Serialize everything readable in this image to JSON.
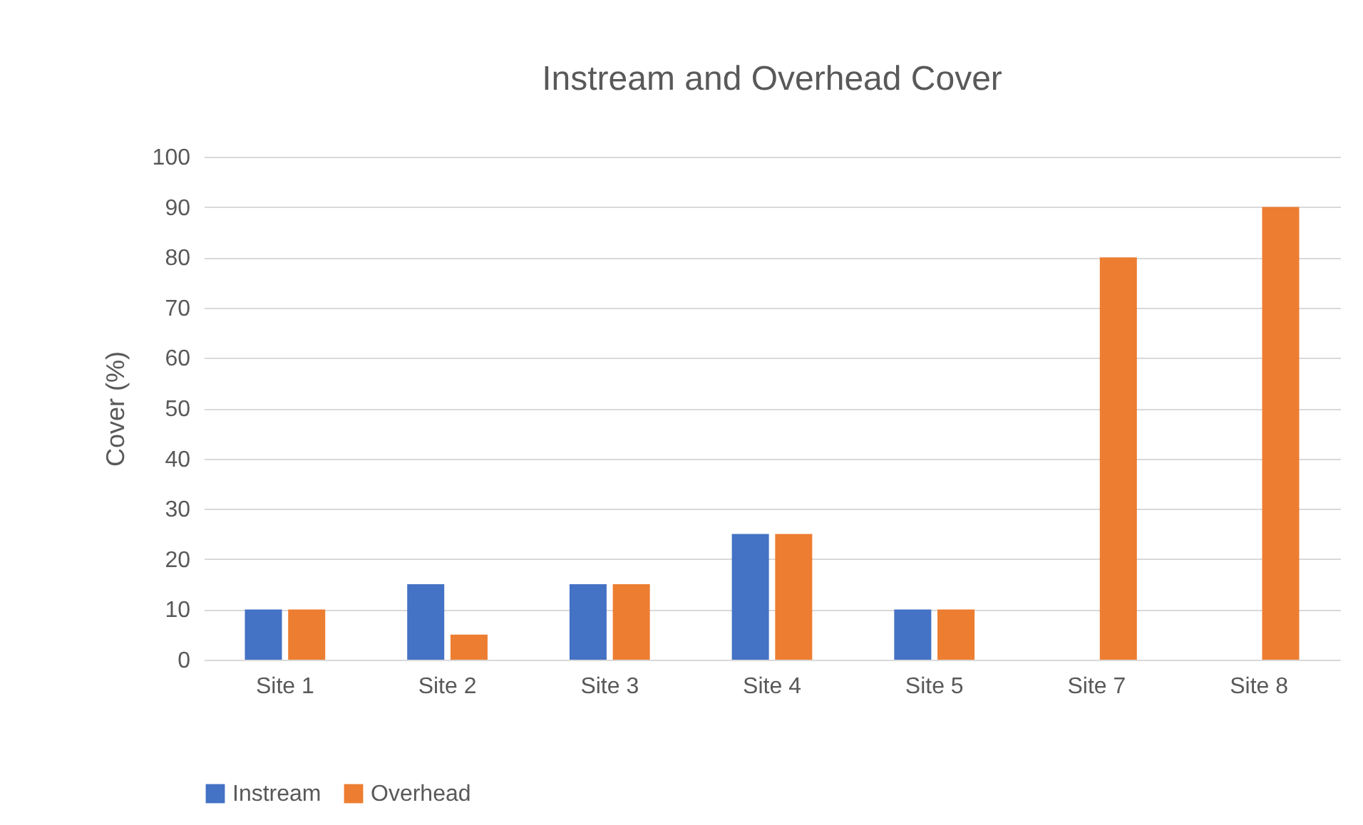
{
  "chart_data": {
    "type": "bar",
    "title": "Instream and Overhead Cover",
    "ylabel": "Cover (%)",
    "categories": [
      "Site 1",
      "Site 2",
      "Site 3",
      "Site 4",
      "Site 5",
      "Site 7",
      "Site 8"
    ],
    "series": [
      {
        "name": "Instream",
        "color": "#4472c4",
        "values": [
          10,
          15,
          15,
          25,
          10,
          0,
          0
        ]
      },
      {
        "name": "Overhead",
        "color": "#ed7d31",
        "values": [
          10,
          5,
          15,
          25,
          10,
          80,
          90
        ]
      }
    ],
    "ylim": [
      0,
      100
    ],
    "yticks": [
      0,
      10,
      20,
      30,
      40,
      50,
      60,
      70,
      80,
      90,
      100
    ],
    "grid": "y",
    "legend": "bottom"
  }
}
